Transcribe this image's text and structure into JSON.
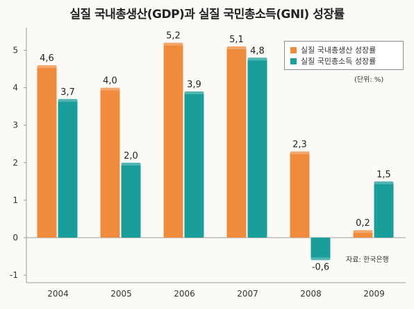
{
  "chart_data": {
    "type": "bar",
    "title": "실질 국내총생산(GDP)과 실질 국민총소득(GNI) 성장률",
    "categories": [
      "2004",
      "2005",
      "2006",
      "2007",
      "2008",
      "2009"
    ],
    "series": [
      {
        "name": "실질 국내총생산 성장률",
        "values": [
          4.6,
          4.0,
          5.2,
          5.1,
          2.3,
          0.2
        ],
        "color": "#f08a3c"
      },
      {
        "name": "실질 국민총소득 성장률",
        "values": [
          3.7,
          2.0,
          3.9,
          4.8,
          -0.6,
          1.5
        ],
        "color": "#1a9e9c"
      }
    ],
    "data_labels": [
      [
        "4,6",
        "4,0",
        "5,2",
        "5,1",
        "2,3",
        "0,2"
      ],
      [
        "3,7",
        "2,0",
        "3,9",
        "4,8",
        "-0,6",
        "1,5"
      ]
    ],
    "ylim": [
      -1.2,
      5.6
    ],
    "yticks": [
      -1,
      0,
      1,
      2,
      3,
      4,
      5
    ],
    "ytick_labels": [
      "-1",
      "0",
      "1",
      "2",
      "3",
      "4",
      "5"
    ],
    "unit_note": "(단위: %)",
    "source": "자료: 한국은행",
    "legend_position": "top-right",
    "grid": false
  }
}
